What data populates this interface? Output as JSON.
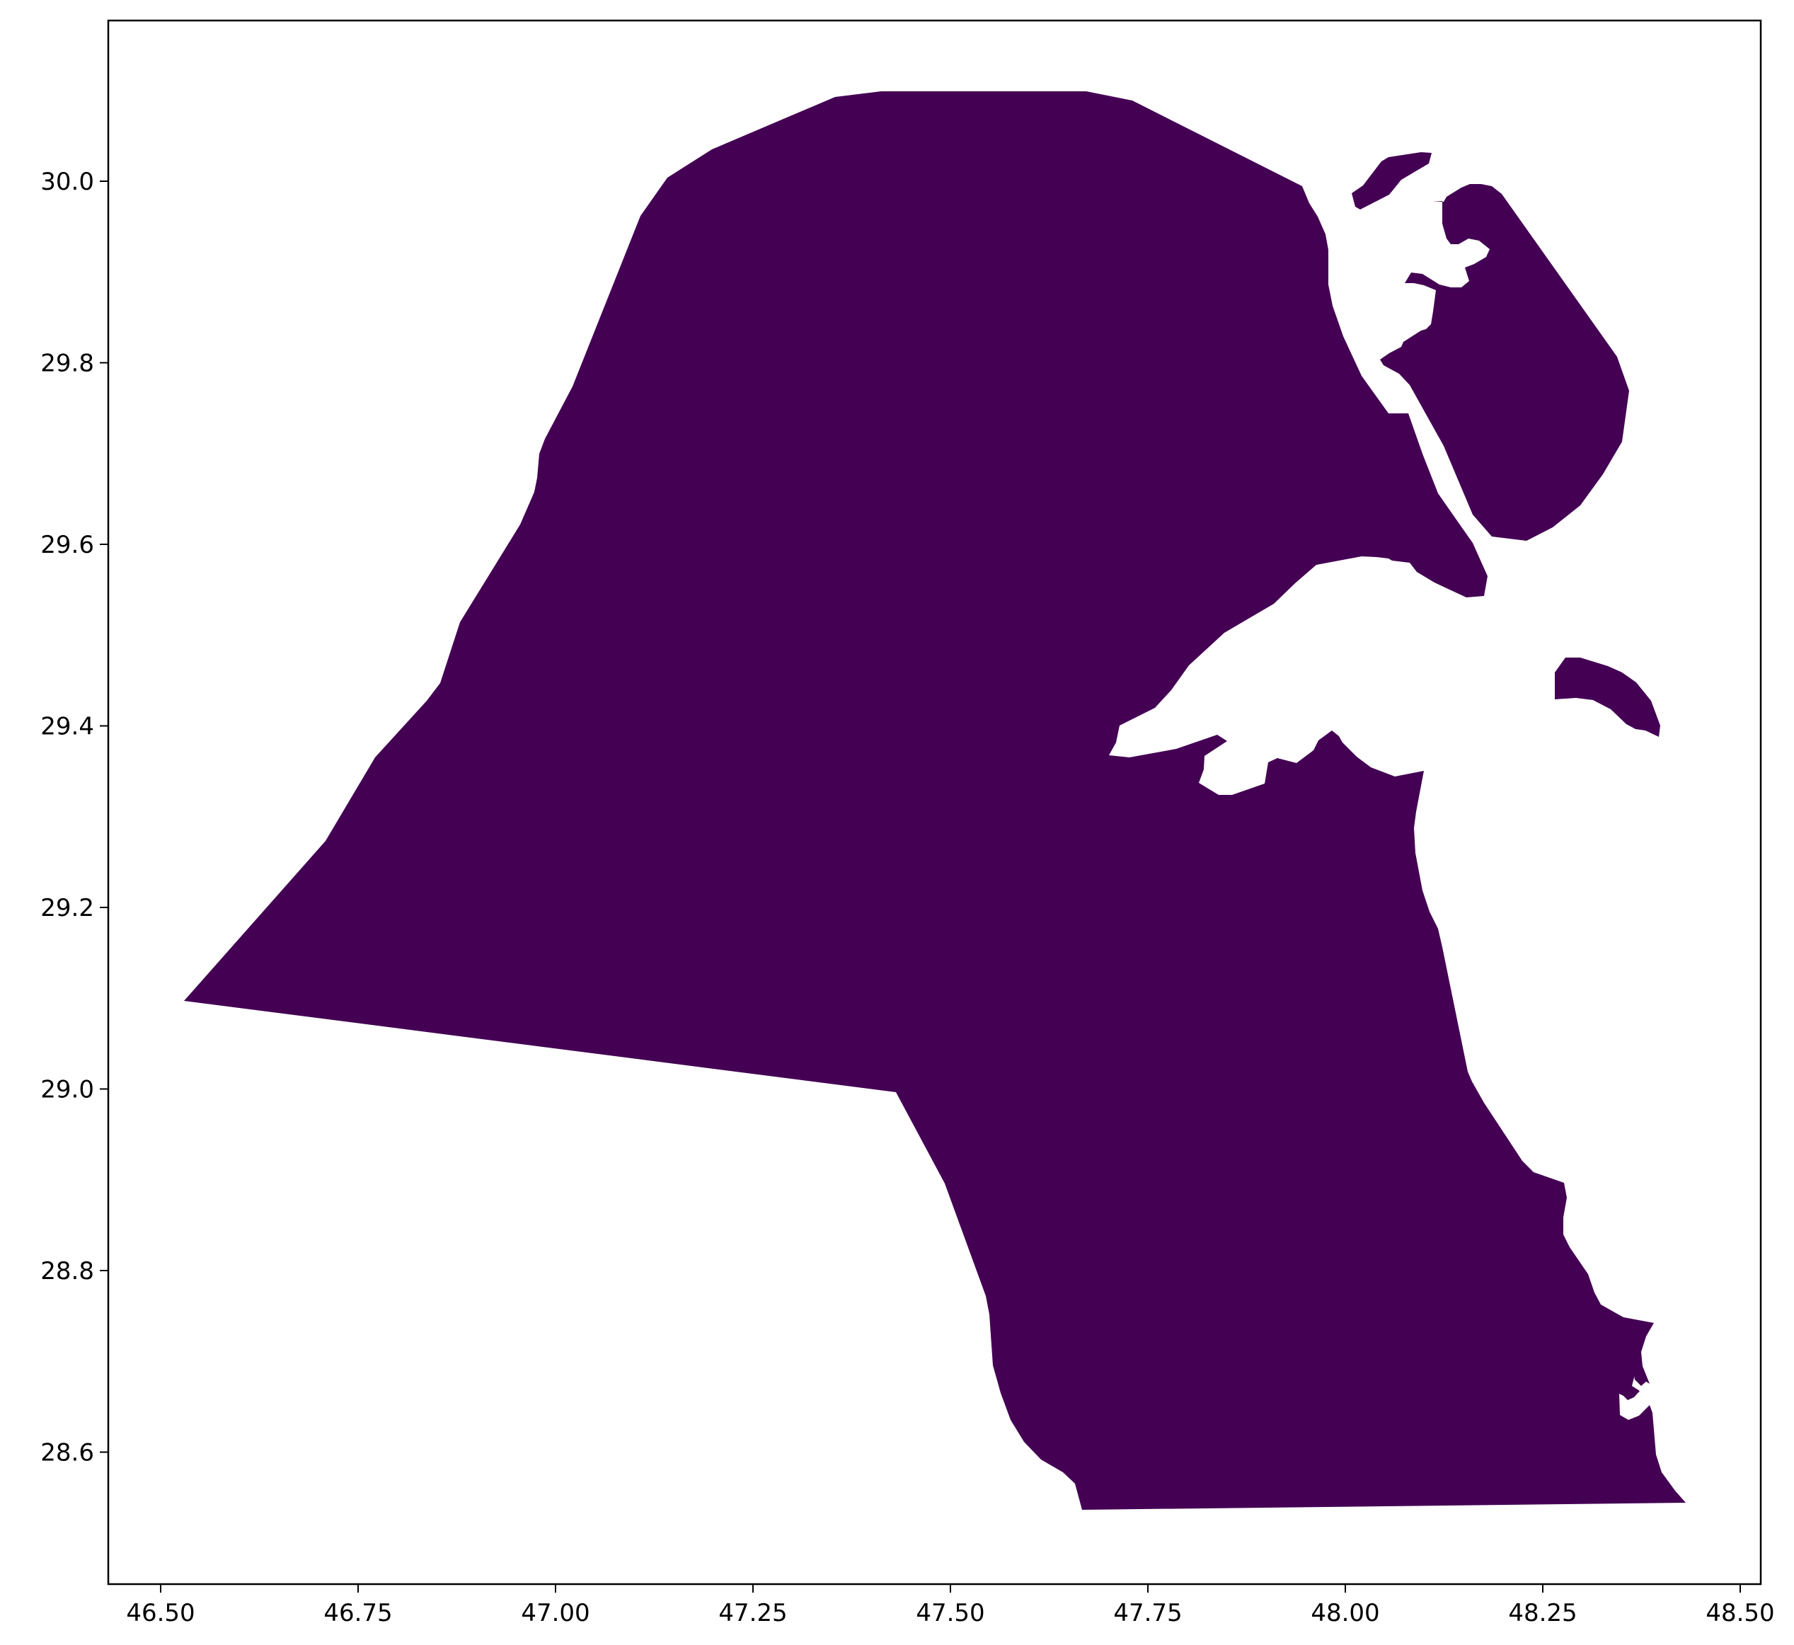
{
  "map": {
    "x_ticks": [
      "46.50",
      "46.75",
      "47.00",
      "47.25",
      "47.50",
      "47.75",
      "48.00",
      "48.25",
      "48.50"
    ],
    "y_ticks": [
      "30.0",
      "29.8",
      "29.6",
      "29.4",
      "29.2",
      "29.0",
      "28.8",
      "28.6"
    ],
    "fill_color": "#440154",
    "frame_color": "#000000"
  }
}
